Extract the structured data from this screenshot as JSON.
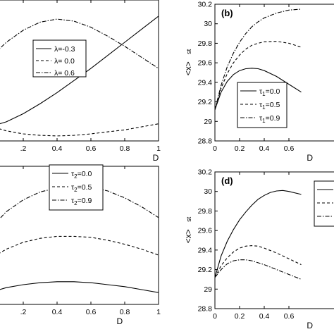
{
  "chart_data": [
    {
      "type": "line",
      "panel_label": "",
      "xlabel": "D",
      "ylabel": "",
      "xlim": [
        0,
        1
      ],
      "ylim": [
        28.8,
        30.2
      ],
      "x_ticks": [
        0.2,
        0.4,
        0.6,
        0.8,
        1
      ],
      "x_tick_labels": [
        ".2",
        "0.4",
        "0.6",
        "0.8",
        "1"
      ],
      "y_ticks": [],
      "y_tick_labels": [],
      "legend": "upper-center",
      "series": [
        {
          "name": "λ=-0.3",
          "style": "solid",
          "x": [
            0,
            0.1,
            0.2,
            0.3,
            0.4,
            0.5,
            0.6,
            0.7,
            0.8,
            0.9,
            1.0
          ],
          "y": [
            28.94,
            28.99,
            29.07,
            29.17,
            29.28,
            29.4,
            29.52,
            29.65,
            29.78,
            29.91,
            30.04
          ]
        },
        {
          "name": "λ= 0.0",
          "style": "dashed",
          "x": [
            0,
            0.1,
            0.2,
            0.3,
            0.4,
            0.5,
            0.6,
            0.7,
            0.8,
            0.9,
            1.0
          ],
          "y": [
            28.95,
            28.9,
            28.87,
            28.855,
            28.85,
            28.855,
            28.87,
            28.89,
            28.91,
            28.94,
            28.97
          ]
        },
        {
          "name": "λ= 0.6",
          "style": "dashdot",
          "x": [
            0,
            0.1,
            0.2,
            0.3,
            0.4,
            0.5,
            0.6,
            0.7,
            0.8,
            0.9,
            1.0
          ],
          "y": [
            29.62,
            29.78,
            29.9,
            29.98,
            30.01,
            29.99,
            29.93,
            29.84,
            29.74,
            29.63,
            29.52
          ]
        }
      ]
    },
    {
      "type": "line",
      "panel_label": "(b)",
      "xlabel": "D",
      "ylabel": "<x>",
      "ylabel_sub": "st",
      "xlim": [
        0,
        1
      ],
      "ylim": [
        28.8,
        30.2
      ],
      "x_ticks": [
        0,
        0.2,
        0.4,
        0.6
      ],
      "x_tick_labels": [
        "0",
        "0.2",
        "0.4",
        "0.6"
      ],
      "y_ticks": [
        28.8,
        29,
        29.2,
        29.4,
        29.6,
        29.8,
        30,
        30.2
      ],
      "y_tick_labels": [
        "28.8",
        "29",
        "29.2",
        "29.4",
        "29.6",
        "29.8",
        "30",
        "30.2"
      ],
      "legend": "lower-left",
      "series": [
        {
          "name": "τ1=0.0",
          "style": "solid",
          "x": [
            0,
            0.05,
            0.1,
            0.15,
            0.2,
            0.25,
            0.3,
            0.35,
            0.4,
            0.5,
            0.6,
            0.7
          ],
          "y": [
            29.12,
            29.3,
            29.41,
            29.48,
            29.52,
            29.54,
            29.545,
            29.54,
            29.52,
            29.46,
            29.38,
            29.3
          ]
        },
        {
          "name": "τ1=0.5",
          "style": "dashed",
          "x": [
            0,
            0.05,
            0.1,
            0.15,
            0.2,
            0.25,
            0.3,
            0.35,
            0.4,
            0.5,
            0.6,
            0.7
          ],
          "y": [
            29.12,
            29.34,
            29.49,
            29.6,
            29.68,
            29.74,
            29.78,
            29.8,
            29.815,
            29.82,
            29.8,
            29.76
          ]
        },
        {
          "name": "τ1=0.9",
          "style": "dashdot",
          "x": [
            0,
            0.05,
            0.1,
            0.15,
            0.2,
            0.25,
            0.3,
            0.35,
            0.4,
            0.5,
            0.6,
            0.7
          ],
          "y": [
            29.12,
            29.37,
            29.56,
            29.7,
            29.81,
            29.9,
            29.97,
            30.02,
            30.06,
            30.11,
            30.14,
            30.15
          ]
        }
      ]
    },
    {
      "type": "line",
      "panel_label": "",
      "xlabel": "D",
      "ylabel": "",
      "xlim": [
        0,
        1
      ],
      "ylim": [
        28.8,
        30.2
      ],
      "x_ticks": [
        0.2,
        0.4,
        0.6,
        0.8,
        1
      ],
      "x_tick_labels": [
        ".2",
        "0.4",
        "0.6",
        "0.8",
        "1"
      ],
      "y_ticks": [],
      "y_tick_labels": [],
      "legend": "upper-center",
      "series": [
        {
          "name": "τ2=0.0",
          "style": "solid",
          "x": [
            0,
            0.1,
            0.2,
            0.3,
            0.4,
            0.5,
            0.6,
            0.7,
            0.8,
            0.9,
            1.0
          ],
          "y": [
            28.92,
            28.97,
            29.0,
            29.02,
            29.03,
            29.03,
            29.02,
            29.0,
            28.98,
            28.95,
            28.92
          ]
        },
        {
          "name": "τ2=0.5",
          "style": "dashed",
          "x": [
            0,
            0.1,
            0.2,
            0.3,
            0.4,
            0.5,
            0.6,
            0.7,
            0.8,
            0.9,
            1.0
          ],
          "y": [
            29.26,
            29.36,
            29.43,
            29.47,
            29.49,
            29.49,
            29.48,
            29.45,
            29.41,
            29.36,
            29.3
          ]
        },
        {
          "name": "τ2=0.9",
          "style": "dashdot",
          "x": [
            0,
            0.1,
            0.2,
            0.3,
            0.4,
            0.5,
            0.6,
            0.7,
            0.8,
            0.9,
            1.0
          ],
          "y": [
            29.56,
            29.74,
            29.86,
            29.94,
            29.98,
            30.0,
            29.99,
            29.95,
            29.88,
            29.79,
            29.68
          ]
        }
      ]
    },
    {
      "type": "line",
      "panel_label": "(d)",
      "xlabel": "D",
      "ylabel": "<x>",
      "ylabel_sub": "st",
      "xlim": [
        0,
        1
      ],
      "ylim": [
        28.8,
        30.2
      ],
      "x_ticks": [
        0,
        0.2,
        0.4,
        0.6
      ],
      "x_tick_labels": [
        "0",
        "0.2",
        "0.4",
        "0.6"
      ],
      "y_ticks": [
        28.8,
        29,
        29.2,
        29.4,
        29.6,
        29.8,
        30,
        30.2
      ],
      "y_tick_labels": [
        "28.8",
        "29",
        "29.2",
        "29.4",
        "29.6",
        "29.8",
        "30",
        "30.2"
      ],
      "legend": "upper-right",
      "series": [
        {
          "name": "",
          "style": "solid",
          "x": [
            0,
            0.05,
            0.1,
            0.15,
            0.2,
            0.25,
            0.3,
            0.35,
            0.4,
            0.45,
            0.5,
            0.55,
            0.6,
            0.7
          ],
          "y": [
            29.12,
            29.34,
            29.49,
            29.61,
            29.71,
            29.79,
            29.86,
            29.92,
            29.96,
            29.99,
            30.005,
            30.01,
            30.0,
            29.97
          ]
        },
        {
          "name": "",
          "style": "dashed",
          "x": [
            0,
            0.05,
            0.1,
            0.15,
            0.2,
            0.25,
            0.3,
            0.35,
            0.4,
            0.5,
            0.6,
            0.7
          ],
          "y": [
            29.12,
            29.24,
            29.32,
            29.38,
            29.42,
            29.44,
            29.445,
            29.44,
            29.42,
            29.37,
            29.31,
            29.25
          ]
        },
        {
          "name": "",
          "style": "dashdot",
          "x": [
            0,
            0.05,
            0.1,
            0.15,
            0.2,
            0.25,
            0.3,
            0.35,
            0.4,
            0.5,
            0.6,
            0.7
          ],
          "y": [
            29.12,
            29.2,
            29.26,
            29.29,
            29.3,
            29.3,
            29.29,
            29.27,
            29.25,
            29.2,
            29.15,
            29.1
          ]
        }
      ]
    }
  ]
}
